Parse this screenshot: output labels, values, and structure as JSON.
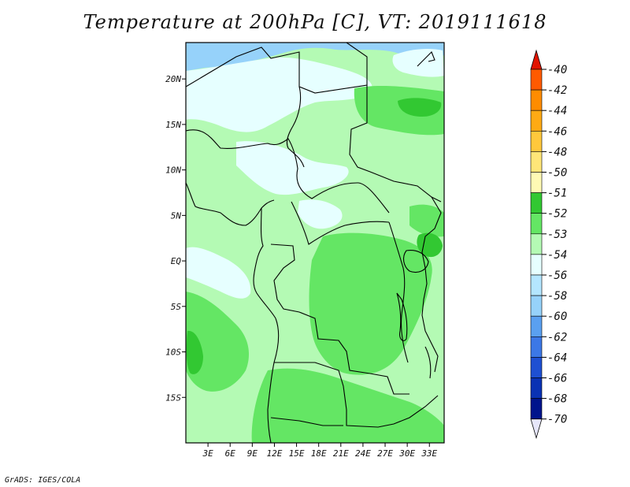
{
  "title": "Temperature at 200hPa [C], VT: 2019111618",
  "credit": "GrADS: IGES/COLA",
  "map": {
    "lon_range": [
      0,
      35
    ],
    "lat_range": [
      -20,
      24
    ],
    "lat_ticks": [
      {
        "value": 20,
        "label": "20N"
      },
      {
        "value": 15,
        "label": "15N"
      },
      {
        "value": 10,
        "label": "10N"
      },
      {
        "value": 5,
        "label": "5N"
      },
      {
        "value": 0,
        "label": "EQ"
      },
      {
        "value": -5,
        "label": "5S"
      },
      {
        "value": -10,
        "label": "10S"
      },
      {
        "value": -15,
        "label": "15S"
      }
    ],
    "lon_ticks": [
      {
        "value": 3,
        "label": "3E"
      },
      {
        "value": 6,
        "label": "6E"
      },
      {
        "value": 9,
        "label": "9E"
      },
      {
        "value": 12,
        "label": "12E"
      },
      {
        "value": 15,
        "label": "15E"
      },
      {
        "value": 18,
        "label": "18E"
      },
      {
        "value": 21,
        "label": "21E"
      },
      {
        "value": 24,
        "label": "24E"
      },
      {
        "value": 27,
        "label": "27E"
      },
      {
        "value": 30,
        "label": "30E"
      },
      {
        "value": 33,
        "label": "33E"
      }
    ]
  },
  "colorbar": {
    "levels": [
      {
        "label": "-40",
        "color": "#ff3c00"
      },
      {
        "label": "-42",
        "color": "#ff5a00"
      },
      {
        "label": "-44",
        "color": "#ff8c00"
      },
      {
        "label": "-46",
        "color": "#ffaa14"
      },
      {
        "label": "-48",
        "color": "#ffc83c"
      },
      {
        "label": "-50",
        "color": "#ffe678"
      },
      {
        "label": "-51",
        "color": "#fffab4"
      },
      {
        "label": "-52",
        "color": "#32c832"
      },
      {
        "label": "-53",
        "color": "#64e664"
      },
      {
        "label": "-54",
        "color": "#b4fab4"
      },
      {
        "label": "-56",
        "color": "#e6ffff"
      },
      {
        "label": "-58",
        "color": "#b4e6ff"
      },
      {
        "label": "-60",
        "color": "#96d2fa"
      },
      {
        "label": "-62",
        "color": "#5aa0f0"
      },
      {
        "label": "-64",
        "color": "#3c78e6"
      },
      {
        "label": "-66",
        "color": "#1e50d2"
      },
      {
        "label": "-68",
        "color": "#0a32b4"
      },
      {
        "label": "-70",
        "color": "#00148c"
      }
    ],
    "top_color": "#e11400",
    "bottom_color": "#e6e6fa"
  },
  "fields": {
    "background": "#b4fab4",
    "cold": "#e6ffff",
    "colder": "#96d2fa",
    "warm": "#64e664",
    "warmest": "#32c832",
    "boundary": "#000000"
  }
}
